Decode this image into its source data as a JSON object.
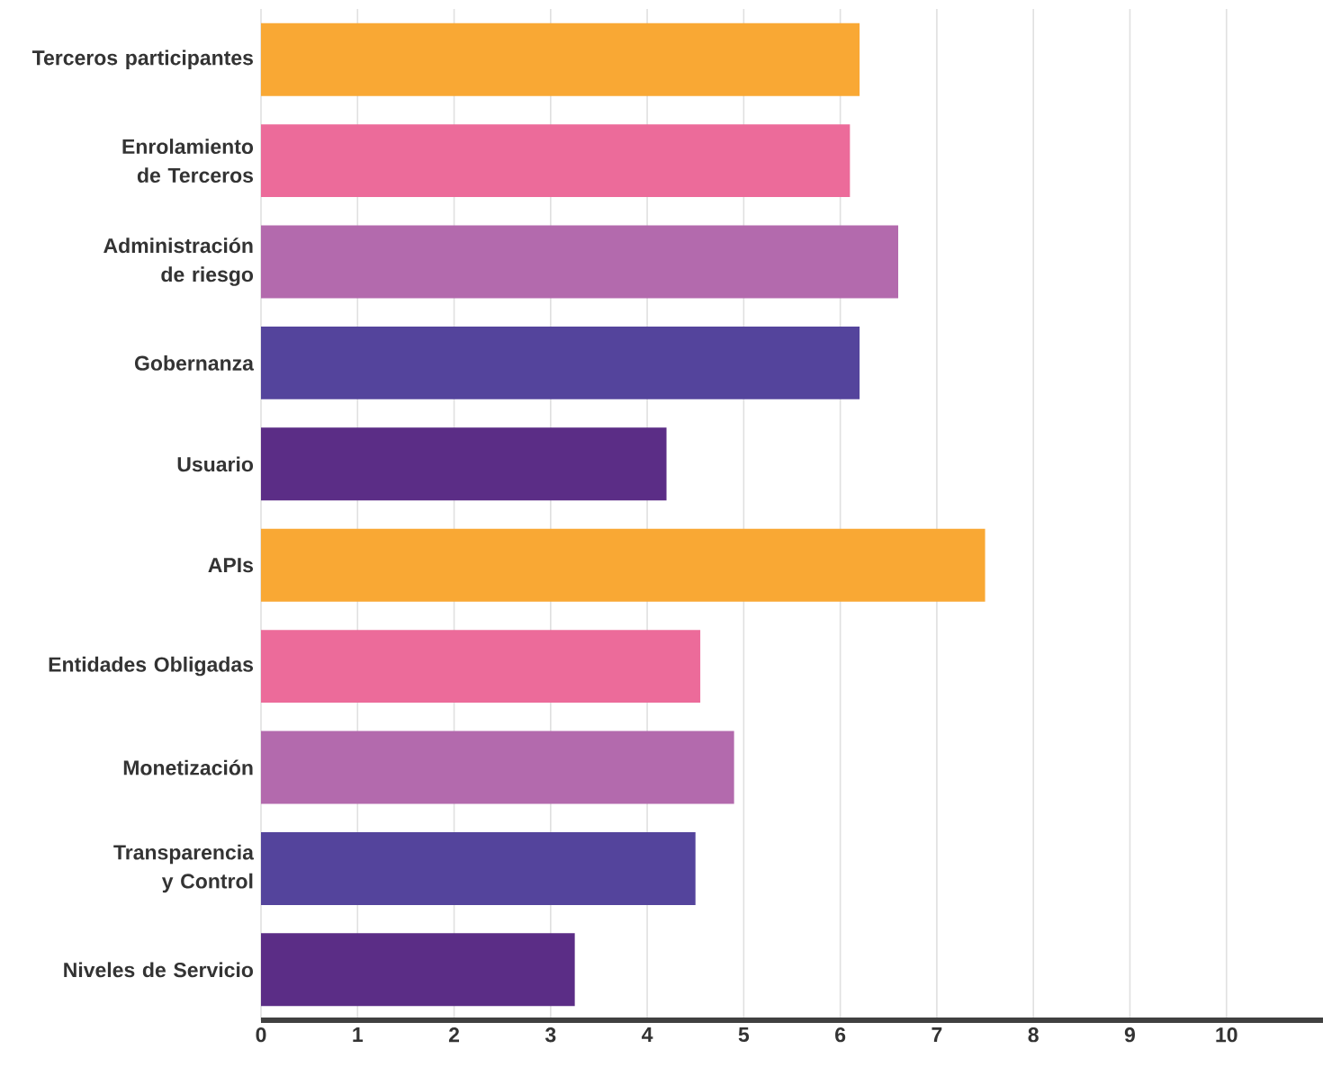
{
  "chart_data": {
    "type": "bar",
    "orientation": "horizontal",
    "categories": [
      "Terceros participantes",
      "Enrolamiento de Terceros",
      "Administración de riesgo",
      "Gobernanza",
      "Usuario",
      "APIs",
      "Entidades Obligadas",
      "Monetización",
      "Transparencia y Control",
      "Niveles de Servicio"
    ],
    "values": [
      6.2,
      6.1,
      6.6,
      6.2,
      4.2,
      7.5,
      4.55,
      4.9,
      4.5,
      3.25
    ],
    "colors": [
      "#f9a834",
      "#ec6b9a",
      "#b36aad",
      "#54449c",
      "#5b2d86",
      "#f9a834",
      "#ec6b9a",
      "#b36aad",
      "#54449c",
      "#5b2d86"
    ],
    "xlim": [
      0,
      11
    ],
    "xticks": [
      0,
      1,
      2,
      3,
      4,
      5,
      6,
      7,
      8,
      9,
      10
    ],
    "grid": "x"
  }
}
